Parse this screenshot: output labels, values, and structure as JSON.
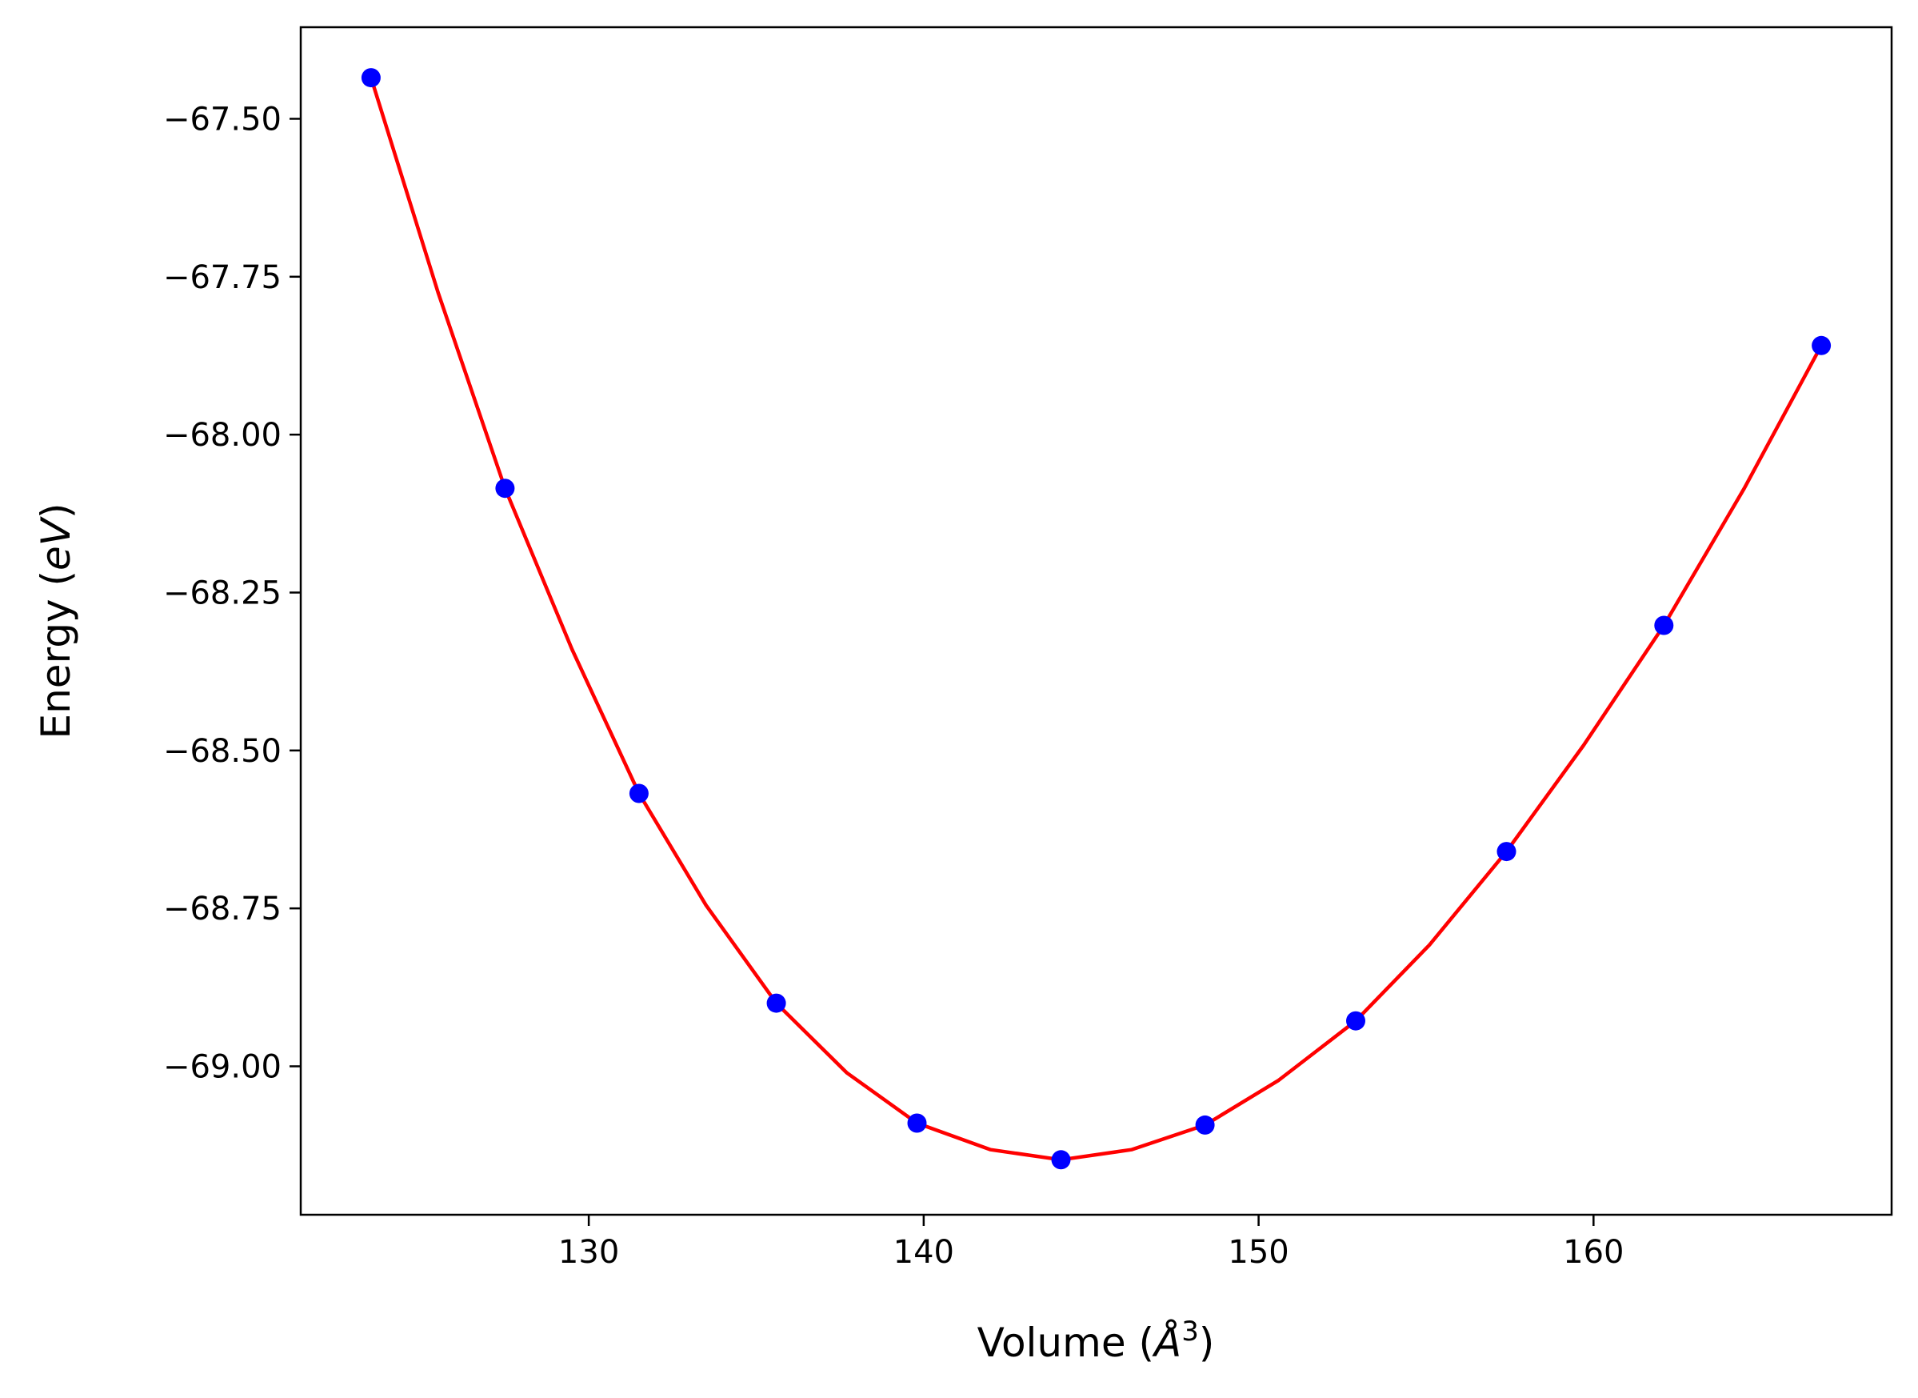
{
  "chart_data": {
    "type": "scatter",
    "title": "",
    "xlabel_parts": {
      "pre": "Volume (",
      "italic": "Å",
      "sup": "3",
      "post": ")"
    },
    "ylabel_parts": {
      "pre": "Energy (",
      "italic": "eV",
      "post": ")"
    },
    "xlim": [
      121.4,
      168.9
    ],
    "ylim": [
      -69.235,
      -67.355
    ],
    "xticks": [
      130,
      140,
      150,
      160
    ],
    "xtick_labels": [
      "130",
      "140",
      "150",
      "160"
    ],
    "yticks": [
      -67.5,
      -67.75,
      -68.0,
      -68.25,
      -68.5,
      -68.75,
      -69.0
    ],
    "ytick_labels": [
      "−67.50",
      "−67.75",
      "−68.00",
      "−68.25",
      "−68.50",
      "−68.75",
      "−69.00"
    ],
    "grid": false,
    "series": [
      {
        "kind": "points",
        "color": "#0000ff",
        "x": [
          123.5,
          127.5,
          131.5,
          135.6,
          139.8,
          144.1,
          148.4,
          152.9,
          157.4,
          162.1,
          166.8
        ],
        "y": [
          -67.435,
          -68.085,
          -68.568,
          -68.9,
          -69.09,
          -69.148,
          -69.093,
          -68.928,
          -68.66,
          -68.302,
          -67.859
        ]
      },
      {
        "kind": "fit-line",
        "color": "#ff0000",
        "x": [
          123.5,
          125.5,
          127.5,
          129.5,
          131.5,
          133.5,
          135.6,
          137.7,
          139.8,
          142.0,
          144.1,
          146.2,
          148.4,
          150.6,
          152.9,
          155.1,
          157.4,
          159.7,
          162.1,
          164.5,
          166.8
        ],
        "y": [
          -67.435,
          -67.775,
          -68.085,
          -68.34,
          -68.568,
          -68.745,
          -68.9,
          -69.01,
          -69.09,
          -69.132,
          -69.148,
          -69.132,
          -69.093,
          -69.022,
          -68.928,
          -68.808,
          -68.66,
          -68.492,
          -68.302,
          -68.085,
          -67.859
        ]
      }
    ]
  }
}
